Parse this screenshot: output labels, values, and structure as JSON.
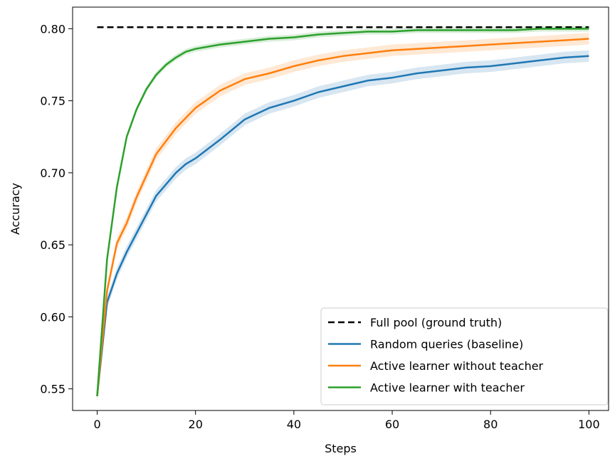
{
  "chart_data": {
    "type": "line",
    "title": "",
    "xlabel": "Steps",
    "ylabel": "Accuracy",
    "xlim": [
      -5,
      104
    ],
    "ylim": [
      0.535,
      0.815
    ],
    "xticks": [
      0,
      20,
      40,
      60,
      80,
      100
    ],
    "xtick_labels": [
      "0",
      "20",
      "40",
      "60",
      "80",
      "100"
    ],
    "yticks": [
      0.55,
      0.6,
      0.65,
      0.7,
      0.75,
      0.8
    ],
    "ytick_labels": [
      "0.55",
      "0.60",
      "0.65",
      "0.70",
      "0.75",
      "0.80"
    ],
    "grid": false,
    "legend_position": "lower-right",
    "x": [
      0,
      2,
      4,
      6,
      8,
      10,
      12,
      14,
      16,
      18,
      20,
      25,
      30,
      35,
      40,
      45,
      50,
      55,
      60,
      65,
      70,
      75,
      80,
      85,
      90,
      95,
      100
    ],
    "series": [
      {
        "name": "Full pool (ground truth)",
        "color": "#000000",
        "style": "dashed",
        "values": [
          0.801,
          0.801,
          0.801,
          0.801,
          0.801,
          0.801,
          0.801,
          0.801,
          0.801,
          0.801,
          0.801,
          0.801,
          0.801,
          0.801,
          0.801,
          0.801,
          0.801,
          0.801,
          0.801,
          0.801,
          0.801,
          0.801,
          0.801,
          0.801,
          0.801,
          0.801,
          0.801
        ]
      },
      {
        "name": "Random queries (baseline)",
        "color": "#1f77b4",
        "style": "solid",
        "values": [
          0.545,
          0.61,
          0.63,
          0.645,
          0.658,
          0.671,
          0.684,
          0.692,
          0.7,
          0.706,
          0.71,
          0.723,
          0.737,
          0.745,
          0.75,
          0.756,
          0.76,
          0.764,
          0.766,
          0.769,
          0.771,
          0.773,
          0.774,
          0.776,
          0.778,
          0.78,
          0.781
        ],
        "band": 0.004
      },
      {
        "name": "Active learner without teacher",
        "color": "#ff7f0e",
        "style": "solid",
        "values": [
          0.545,
          0.618,
          0.651,
          0.665,
          0.683,
          0.698,
          0.713,
          0.722,
          0.731,
          0.738,
          0.745,
          0.757,
          0.765,
          0.769,
          0.774,
          0.778,
          0.781,
          0.783,
          0.785,
          0.786,
          0.787,
          0.788,
          0.789,
          0.79,
          0.791,
          0.792,
          0.793
        ],
        "band": 0.004
      },
      {
        "name": "Active learner with teacher",
        "color": "#2ca02c",
        "style": "solid",
        "values": [
          0.545,
          0.64,
          0.69,
          0.725,
          0.744,
          0.758,
          0.768,
          0.775,
          0.78,
          0.784,
          0.786,
          0.789,
          0.791,
          0.793,
          0.794,
          0.796,
          0.797,
          0.798,
          0.798,
          0.799,
          0.799,
          0.799,
          0.799,
          0.799,
          0.8,
          0.8,
          0.8
        ],
        "band": 0.002
      }
    ]
  }
}
